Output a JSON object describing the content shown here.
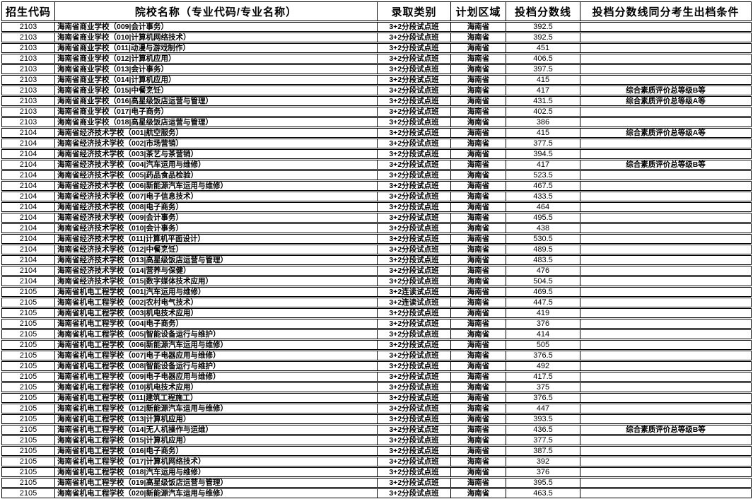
{
  "colors": {
    "background": "#ffffff",
    "border": "#000000",
    "text": "#000000"
  },
  "table": {
    "headers": [
      "招生代码",
      "院校名称（专业代码/专业名称）",
      "录取类别",
      "计划区域",
      "投档分数线",
      "投档分数线同分考生出档条件"
    ],
    "rows": [
      [
        "2103",
        "海南省商业学校（009|会计事务）",
        "3+2分段试点班",
        "海南省",
        "392.5",
        ""
      ],
      [
        "2103",
        "海南省商业学校（010|计算机网络技术）",
        "3+2分段试点班",
        "海南省",
        "392.5",
        ""
      ],
      [
        "2103",
        "海南省商业学校（011|动漫与游戏制作）",
        "3+2分段试点班",
        "海南省",
        "451",
        ""
      ],
      [
        "2103",
        "海南省商业学校（012|计算机应用）",
        "3+2分段试点班",
        "海南省",
        "406.5",
        ""
      ],
      [
        "2103",
        "海南省商业学校（013|会计事务）",
        "3+2分段试点班",
        "海南省",
        "397.5",
        ""
      ],
      [
        "2103",
        "海南省商业学校（014|计算机应用）",
        "3+2分段试点班",
        "海南省",
        "415",
        ""
      ],
      [
        "2103",
        "海南省商业学校（015|中餐烹饪）",
        "3+2分段试点班",
        "海南省",
        "417",
        "综合素质评价总等级B等"
      ],
      [
        "2103",
        "海南省商业学校（016|高星级饭店运营与管理）",
        "3+2分段试点班",
        "海南省",
        "431.5",
        "综合素质评价总等级A等"
      ],
      [
        "2103",
        "海南省商业学校（017|电子商务）",
        "3+2分段试点班",
        "海南省",
        "402.5",
        ""
      ],
      [
        "2103",
        "海南省商业学校（018|高星级饭店运营与管理）",
        "3+2分段试点班",
        "海南省",
        "386",
        ""
      ],
      [
        "2104",
        "海南省经济技术学校（001|航空服务）",
        "3+2分段试点班",
        "海南省",
        "415",
        "综合素质评价总等级A等"
      ],
      [
        "2104",
        "海南省经济技术学校（002|市场营销）",
        "3+2分段试点班",
        "海南省",
        "377.5",
        ""
      ],
      [
        "2104",
        "海南省经济技术学校（003|茶艺与茶营销）",
        "3+2分段试点班",
        "海南省",
        "394.5",
        ""
      ],
      [
        "2104",
        "海南省经济技术学校（004|汽车运用与维修）",
        "3+2分段试点班",
        "海南省",
        "417",
        "综合素质评价总等级B等"
      ],
      [
        "2104",
        "海南省经济技术学校（005|药品食品检验）",
        "3+2分段试点班",
        "海南省",
        "523.5",
        ""
      ],
      [
        "2104",
        "海南省经济技术学校（006|新能源汽车运用与维修）",
        "3+2分段试点班",
        "海南省",
        "467.5",
        ""
      ],
      [
        "2104",
        "海南省经济技术学校（007|电子信息技术）",
        "3+2分段试点班",
        "海南省",
        "433.5",
        ""
      ],
      [
        "2104",
        "海南省经济技术学校（008|电子商务）",
        "3+2分段试点班",
        "海南省",
        "464",
        ""
      ],
      [
        "2104",
        "海南省经济技术学校（009|会计事务）",
        "3+2分段试点班",
        "海南省",
        "495.5",
        ""
      ],
      [
        "2104",
        "海南省经济技术学校（010|会计事务）",
        "3+2分段试点班",
        "海南省",
        "438",
        ""
      ],
      [
        "2104",
        "海南省经济技术学校（011|计算机平面设计）",
        "3+2分段试点班",
        "海南省",
        "530.5",
        ""
      ],
      [
        "2104",
        "海南省经济技术学校（012|中餐烹饪）",
        "3+2分段试点班",
        "海南省",
        "489.5",
        ""
      ],
      [
        "2104",
        "海南省经济技术学校（013|高星级饭店运营与管理）",
        "3+2分段试点班",
        "海南省",
        "483.5",
        ""
      ],
      [
        "2104",
        "海南省经济技术学校（014|营养与保健）",
        "3+2分段试点班",
        "海南省",
        "476",
        ""
      ],
      [
        "2104",
        "海南省经济技术学校（015|数字媒体技术应用）",
        "3+2分段试点班",
        "海南省",
        "504.5",
        ""
      ],
      [
        "2105",
        "海南省机电工程学校（001|汽车运用与维修）",
        "3+2连读试点班",
        "海南省",
        "469.5",
        ""
      ],
      [
        "2105",
        "海南省机电工程学校（002|农村电气技术）",
        "3+2连读试点班",
        "海南省",
        "447.5",
        ""
      ],
      [
        "2105",
        "海南省机电工程学校（003|机电技术应用）",
        "3+2分段试点班",
        "海南省",
        "419",
        ""
      ],
      [
        "2105",
        "海南省机电工程学校（004|电子商务）",
        "3+2分段试点班",
        "海南省",
        "376",
        ""
      ],
      [
        "2105",
        "海南省机电工程学校（005|智能设备运行与维护）",
        "3+2分段试点班",
        "海南省",
        "414",
        ""
      ],
      [
        "2105",
        "海南省机电工程学校（006|新能源汽车运用与维修）",
        "3+2分段试点班",
        "海南省",
        "505",
        ""
      ],
      [
        "2105",
        "海南省机电工程学校（007|电子电器应用与维修）",
        "3+2分段试点班",
        "海南省",
        "376.5",
        ""
      ],
      [
        "2105",
        "海南省机电工程学校（008|智能设备运行与维护）",
        "3+2分段试点班",
        "海南省",
        "492",
        ""
      ],
      [
        "2105",
        "海南省机电工程学校（009|电子电器应用与维修）",
        "3+2分段试点班",
        "海南省",
        "417.5",
        ""
      ],
      [
        "2105",
        "海南省机电工程学校（010|机电技术应用）",
        "3+2分段试点班",
        "海南省",
        "375",
        ""
      ],
      [
        "2105",
        "海南省机电工程学校（011|建筑工程施工）",
        "3+2分段试点班",
        "海南省",
        "376.5",
        ""
      ],
      [
        "2105",
        "海南省机电工程学校（012|新能源汽车运用与维修）",
        "3+2分段试点班",
        "海南省",
        "447",
        ""
      ],
      [
        "2105",
        "海南省机电工程学校（013|计算机应用）",
        "3+2分段试点班",
        "海南省",
        "393.5",
        ""
      ],
      [
        "2105",
        "海南省机电工程学校（014|无人机操作与运维）",
        "3+2分段试点班",
        "海南省",
        "436.5",
        "综合素质评价总等级B等"
      ],
      [
        "2105",
        "海南省机电工程学校（015|计算机应用）",
        "3+2分段试点班",
        "海南省",
        "377.5",
        ""
      ],
      [
        "2105",
        "海南省机电工程学校（016|电子商务）",
        "3+2分段试点班",
        "海南省",
        "387.5",
        ""
      ],
      [
        "2105",
        "海南省机电工程学校（017|计算机网络技术）",
        "3+2分段试点班",
        "海南省",
        "392",
        ""
      ],
      [
        "2105",
        "海南省机电工程学校（018|汽车运用与维修）",
        "3+2分段试点班",
        "海南省",
        "376",
        ""
      ],
      [
        "2105",
        "海南省机电工程学校（019|高星级饭店运营与管理）",
        "3+2分段试点班",
        "海南省",
        "395.5",
        ""
      ],
      [
        "2105",
        "海南省机电工程学校（020|新能源汽车运用与维修）",
        "3+2分段试点班",
        "海南省",
        "463.5",
        ""
      ]
    ]
  }
}
